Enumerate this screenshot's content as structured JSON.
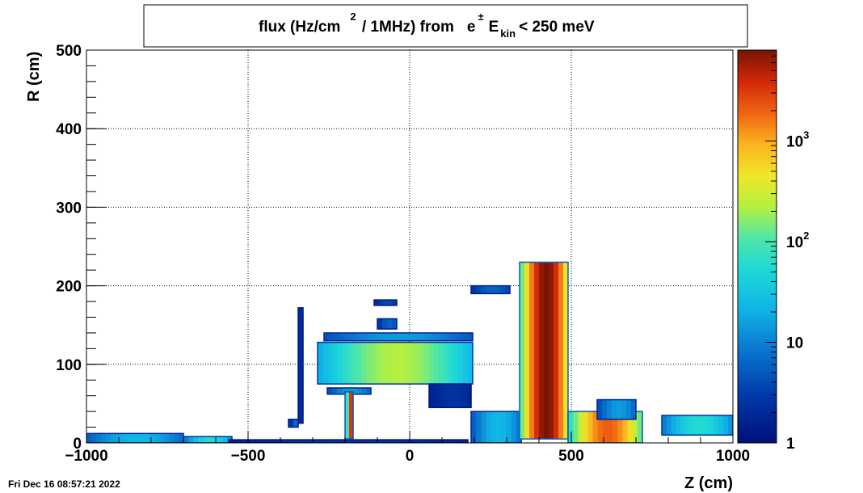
{
  "chart_data": {
    "type": "heatmap",
    "title": {
      "prefix": "flux (Hz/cm",
      "sup2": "2",
      "mid": " / 1MHz) from",
      "particle": "e",
      "particle_sup": "±",
      "ekin": "E",
      "ekin_sub": "kin",
      "suffix": "< 250 meV"
    },
    "xlabel": "Z (cm)",
    "ylabel": "R (cm)",
    "xlim": [
      -1000,
      1000
    ],
    "ylim": [
      0,
      500
    ],
    "x_ticks": [
      {
        "v": -1000,
        "label": "−1000"
      },
      {
        "v": -500,
        "label": "−500"
      },
      {
        "v": 0,
        "label": "0"
      },
      {
        "v": 500,
        "label": "500"
      },
      {
        "v": 1000,
        "label": "1000"
      }
    ],
    "y_ticks": [
      {
        "v": 0,
        "label": "0"
      },
      {
        "v": 100,
        "label": "100"
      },
      {
        "v": 200,
        "label": "200"
      },
      {
        "v": 300,
        "label": "300"
      },
      {
        "v": 400,
        "label": "400"
      },
      {
        "v": 500,
        "label": "500"
      }
    ],
    "grid": true,
    "colorbar": {
      "scale": "log",
      "min": 1,
      "max": 8000,
      "ticks": [
        {
          "v": 1,
          "base": "1",
          "exp": ""
        },
        {
          "v": 10,
          "base": "10",
          "exp": ""
        },
        {
          "v": 100,
          "base": "10",
          "exp": "2"
        },
        {
          "v": 1000,
          "base": "10",
          "exp": "3"
        }
      ]
    },
    "regions": [
      {
        "name": "beamline-left",
        "z": [
          -1000,
          -700
        ],
        "r": [
          0,
          12
        ],
        "level": 0.35
      },
      {
        "name": "beamline-left-2",
        "z": [
          -700,
          -550
        ],
        "r": [
          0,
          8
        ],
        "level": 0.45
      },
      {
        "name": "thin-floor",
        "z": [
          -560,
          180
        ],
        "r": [
          0,
          4
        ],
        "level": 0.1
      },
      {
        "name": "endcap-vertical-left",
        "z": [
          -345,
          -330
        ],
        "r": [
          25,
          172
        ],
        "level": 0.15
      },
      {
        "name": "endcap-low-left",
        "z": [
          -375,
          -345
        ],
        "r": [
          20,
          30
        ],
        "level": 0.2
      },
      {
        "name": "upper-bar",
        "z": [
          -265,
          195
        ],
        "r": [
          130,
          140
        ],
        "level": 0.3
      },
      {
        "name": "barrel-hexagon",
        "z": [
          -285,
          195
        ],
        "r": [
          75,
          128
        ],
        "level": 0.6
      },
      {
        "name": "top-cap",
        "z": [
          -100,
          -40
        ],
        "r": [
          145,
          158
        ],
        "level": 0.2
      },
      {
        "name": "top-ticks",
        "z": [
          -110,
          -40
        ],
        "r": [
          175,
          182
        ],
        "level": 0.15
      },
      {
        "name": "lower-bar",
        "z": [
          -255,
          -120
        ],
        "r": [
          62,
          70
        ],
        "level": 0.3
      },
      {
        "name": "inner-column",
        "z": [
          -200,
          -175
        ],
        "r": [
          5,
          65
        ],
        "level": 0.9
      },
      {
        "name": "diagonal-line",
        "z": [
          60,
          190
        ],
        "r": [
          45,
          75
        ],
        "level": 0.1
      },
      {
        "name": "shelf-top",
        "z": [
          190,
          310
        ],
        "r": [
          190,
          200
        ],
        "level": 0.2
      },
      {
        "name": "forward-base",
        "z": [
          190,
          345
        ],
        "r": [
          0,
          40
        ],
        "level": 0.35
      },
      {
        "name": "forward-tower",
        "z": [
          340,
          490
        ],
        "r": [
          5,
          230
        ],
        "level": 1.0
      },
      {
        "name": "forward-tail",
        "z": [
          490,
          720
        ],
        "r": [
          0,
          40
        ],
        "level": 0.85
      },
      {
        "name": "forward-block",
        "z": [
          580,
          700
        ],
        "r": [
          30,
          55
        ],
        "level": 0.3
      },
      {
        "name": "right-blocks",
        "z": [
          780,
          1000
        ],
        "r": [
          10,
          35
        ],
        "level": 0.45
      }
    ]
  },
  "footer": {
    "timestamp": "Fri Dec 16 08:57:21 2022"
  }
}
